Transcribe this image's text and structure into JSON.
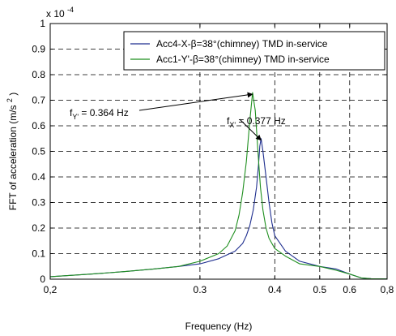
{
  "chart_data": {
    "type": "line",
    "xlabel": "Frequency (Hz)",
    "ylabel_main": "FFT of acceleration (m/s",
    "ylabel_sup": "2",
    "ylabel_close": ")",
    "exponent_label": "x 10",
    "exponent_sup": "-4",
    "xlim": [
      0.2,
      0.8
    ],
    "ylim": [
      0,
      1
    ],
    "x_scale": "reciprocal",
    "grid": true,
    "legend_position": "top-right",
    "x_ticks": [
      {
        "value": 0.2,
        "label": "0,2"
      },
      {
        "value": 0.3,
        "label": "0.3"
      },
      {
        "value": 0.4,
        "label": "0.4"
      },
      {
        "value": 0.5,
        "label": "0.5"
      },
      {
        "value": 0.6,
        "label": "0.6"
      },
      {
        "value": 0.8,
        "label": "0,8"
      }
    ],
    "y_ticks": [
      {
        "value": 0,
        "label": "0"
      },
      {
        "value": 0.1,
        "label": "0.1"
      },
      {
        "value": 0.2,
        "label": "0.2"
      },
      {
        "value": 0.3,
        "label": "0.3"
      },
      {
        "value": 0.4,
        "label": "0.4"
      },
      {
        "value": 0.5,
        "label": "0.5"
      },
      {
        "value": 0.6,
        "label": "0.6"
      },
      {
        "value": 0.7,
        "label": "0.7"
      },
      {
        "value": 0.8,
        "label": "0.8"
      },
      {
        "value": 0.9,
        "label": "0.9"
      },
      {
        "value": 1,
        "label": "1"
      }
    ],
    "series": [
      {
        "name": "Acc4-X-β=38°(chimney) TMD in-service",
        "color": "#1f2f8f",
        "x": [
          0.2,
          0.22,
          0.24,
          0.26,
          0.28,
          0.3,
          0.32,
          0.34,
          0.35,
          0.355,
          0.36,
          0.365,
          0.37,
          0.373,
          0.375,
          0.377,
          0.38,
          0.385,
          0.39,
          0.395,
          0.4,
          0.42,
          0.45,
          0.5,
          0.55,
          0.6,
          0.65,
          0.7,
          0.8
        ],
        "values": [
          0.01,
          0.02,
          0.03,
          0.04,
          0.05,
          0.06,
          0.08,
          0.11,
          0.14,
          0.17,
          0.21,
          0.27,
          0.36,
          0.45,
          0.52,
          0.55,
          0.5,
          0.4,
          0.3,
          0.22,
          0.17,
          0.11,
          0.07,
          0.05,
          0.04,
          0.02,
          0.005,
          0.002,
          0.001
        ]
      },
      {
        "name": "Acc1-Y'-β=38°(chimney) TMD in-service",
        "color": "#1f8f1f",
        "x": [
          0.2,
          0.22,
          0.24,
          0.26,
          0.28,
          0.3,
          0.32,
          0.33,
          0.34,
          0.345,
          0.35,
          0.355,
          0.36,
          0.364,
          0.368,
          0.372,
          0.376,
          0.38,
          0.385,
          0.39,
          0.4,
          0.42,
          0.45,
          0.5,
          0.55,
          0.6,
          0.65,
          0.7,
          0.8
        ],
        "values": [
          0.01,
          0.02,
          0.03,
          0.04,
          0.05,
          0.07,
          0.1,
          0.13,
          0.19,
          0.25,
          0.34,
          0.46,
          0.62,
          0.73,
          0.66,
          0.5,
          0.36,
          0.27,
          0.2,
          0.16,
          0.12,
          0.09,
          0.06,
          0.05,
          0.035,
          0.02,
          0.005,
          0.002,
          0.001
        ]
      }
    ],
    "annotations": [
      {
        "label_main": "f",
        "label_sub": "Y'",
        "label_rest": " = 0.364 Hz",
        "x": 0.364,
        "y": 0.73
      },
      {
        "label_main": "f",
        "label_sub": "X'",
        "label_rest": " = 0.377 Hz",
        "x": 0.377,
        "y": 0.55
      }
    ]
  }
}
